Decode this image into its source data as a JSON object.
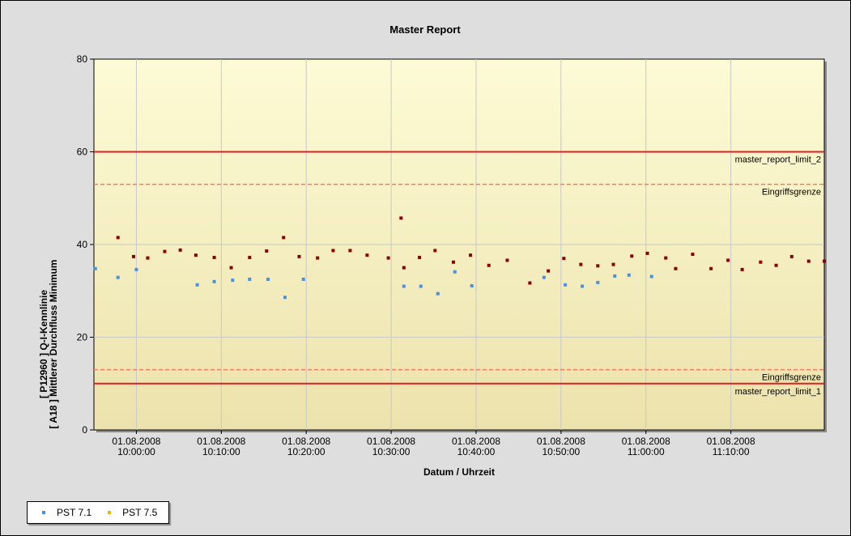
{
  "chart_data": {
    "type": "scatter",
    "title": "Master Report",
    "xlabel": "Datum / Uhrzeit",
    "ylabel": "[ P12960 ]  Q-I-Kennlinie\n[ A18 ]  Mittlerer Durchfluss Minimum",
    "ylim": [
      0,
      80
    ],
    "yticks": [
      0,
      20,
      40,
      60,
      80
    ],
    "xlim": [
      "2008-08-01 09:55:00",
      "2008-08-01 11:21:00"
    ],
    "xticks": [
      {
        "x": "2008-08-01 10:00:00",
        "date": "01.08.2008",
        "time": "10:00:00"
      },
      {
        "x": "2008-08-01 10:10:00",
        "date": "01.08.2008",
        "time": "10:10:00"
      },
      {
        "x": "2008-08-01 10:20:00",
        "date": "01.08.2008",
        "time": "10:20:00"
      },
      {
        "x": "2008-08-01 10:30:00",
        "date": "01.08.2008",
        "time": "10:30:00"
      },
      {
        "x": "2008-08-01 10:40:00",
        "date": "01.08.2008",
        "time": "10:40:00"
      },
      {
        "x": "2008-08-01 10:50:00",
        "date": "01.08.2008",
        "time": "10:50:00"
      },
      {
        "x": "2008-08-01 11:00:00",
        "date": "01.08.2008",
        "time": "11:00:00"
      },
      {
        "x": "2008-08-01 11:10:00",
        "date": "01.08.2008",
        "time": "11:10:00"
      }
    ],
    "grid": true,
    "legend_position": "bottom-left",
    "reference_lines": [
      {
        "label": "master_report_limit_2",
        "y": 60,
        "style": "solid",
        "color": "#e02020"
      },
      {
        "label": "Eingriffsgrenze",
        "y": 53,
        "style": "dashed",
        "color": "#f08060"
      },
      {
        "label": "Eingriffsgrenze",
        "y": 13,
        "style": "dashed",
        "color": "#f08060"
      },
      {
        "label": "master_report_limit_1",
        "y": 10,
        "style": "solid",
        "color": "#e02020"
      }
    ],
    "series": [
      {
        "name": "PST 7.1",
        "color": "#4a90e2",
        "points": [
          {
            "x": "2008-08-01 09:55:10",
            "y": 34.8
          },
          {
            "x": "2008-08-01 09:57:50",
            "y": 32.9
          },
          {
            "x": "2008-08-01 09:60:00",
            "y": 34.6
          },
          {
            "x": "2008-08-01 10:07:10",
            "y": 31.3
          },
          {
            "x": "2008-08-01 10:09:10",
            "y": 32.0
          },
          {
            "x": "2008-08-01 10:11:20",
            "y": 32.3
          },
          {
            "x": "2008-08-01 10:13:20",
            "y": 32.5
          },
          {
            "x": "2008-08-01 10:15:30",
            "y": 32.5
          },
          {
            "x": "2008-08-01 10:17:30",
            "y": 28.6
          },
          {
            "x": "2008-08-01 10:19:40",
            "y": 32.5
          },
          {
            "x": "2008-08-01 10:31:30",
            "y": 31.0
          },
          {
            "x": "2008-08-01 10:33:30",
            "y": 31.0
          },
          {
            "x": "2008-08-01 10:35:30",
            "y": 29.4
          },
          {
            "x": "2008-08-01 10:37:30",
            "y": 34.1
          },
          {
            "x": "2008-08-01 10:39:30",
            "y": 31.1
          },
          {
            "x": "2008-08-01 10:48:00",
            "y": 32.9
          },
          {
            "x": "2008-08-01 10:50:30",
            "y": 31.3
          },
          {
            "x": "2008-08-01 10:52:30",
            "y": 31.0
          },
          {
            "x": "2008-08-01 10:54:20",
            "y": 31.8
          },
          {
            "x": "2008-08-01 10:56:20",
            "y": 33.2
          },
          {
            "x": "2008-08-01 10:58:00",
            "y": 33.4
          },
          {
            "x": "2008-08-01 11:00:40",
            "y": 33.1
          }
        ]
      },
      {
        "name": "PST 7.5",
        "color": "#e8b800",
        "points": []
      },
      {
        "name": "",
        "color": "#8b0000",
        "points": [
          {
            "x": "2008-08-01 09:57:50",
            "y": 41.5
          },
          {
            "x": "2008-08-01 09:59:40",
            "y": 37.4
          },
          {
            "x": "2008-08-01 10:01:20",
            "y": 37.1
          },
          {
            "x": "2008-08-01 10:03:20",
            "y": 38.5
          },
          {
            "x": "2008-08-01 10:05:10",
            "y": 38.8
          },
          {
            "x": "2008-08-01 10:07:00",
            "y": 37.7
          },
          {
            "x": "2008-08-01 10:09:10",
            "y": 37.2
          },
          {
            "x": "2008-08-01 10:11:10",
            "y": 35.0
          },
          {
            "x": "2008-08-01 10:13:20",
            "y": 37.2
          },
          {
            "x": "2008-08-01 10:15:20",
            "y": 38.6
          },
          {
            "x": "2008-08-01 10:17:20",
            "y": 41.5
          },
          {
            "x": "2008-08-01 10:19:10",
            "y": 37.4
          },
          {
            "x": "2008-08-01 10:21:20",
            "y": 37.1
          },
          {
            "x": "2008-08-01 10:23:10",
            "y": 38.7
          },
          {
            "x": "2008-08-01 10:25:10",
            "y": 38.7
          },
          {
            "x": "2008-08-01 10:27:10",
            "y": 37.7
          },
          {
            "x": "2008-08-01 10:29:40",
            "y": 37.1
          },
          {
            "x": "2008-08-01 10:31:10",
            "y": 45.7
          },
          {
            "x": "2008-08-01 10:31:30",
            "y": 35.0
          },
          {
            "x": "2008-08-01 10:33:20",
            "y": 37.2
          },
          {
            "x": "2008-08-01 10:35:10",
            "y": 38.7
          },
          {
            "x": "2008-08-01 10:37:20",
            "y": 36.2
          },
          {
            "x": "2008-08-01 10:39:20",
            "y": 37.7
          },
          {
            "x": "2008-08-01 10:41:30",
            "y": 35.5
          },
          {
            "x": "2008-08-01 10:43:40",
            "y": 36.6
          },
          {
            "x": "2008-08-01 10:46:20",
            "y": 31.7
          },
          {
            "x": "2008-08-01 10:48:30",
            "y": 34.3
          },
          {
            "x": "2008-08-01 10:50:20",
            "y": 37.0
          },
          {
            "x": "2008-08-01 10:52:20",
            "y": 35.7
          },
          {
            "x": "2008-08-01 10:54:20",
            "y": 35.4
          },
          {
            "x": "2008-08-01 10:56:10",
            "y": 35.7
          },
          {
            "x": "2008-08-01 10:58:20",
            "y": 37.5
          },
          {
            "x": "2008-08-01 11:00:10",
            "y": 38.1
          },
          {
            "x": "2008-08-01 11:02:20",
            "y": 37.1
          },
          {
            "x": "2008-08-01 11:03:30",
            "y": 34.8
          },
          {
            "x": "2008-08-01 11:05:30",
            "y": 37.9
          },
          {
            "x": "2008-08-01 11:07:40",
            "y": 34.8
          },
          {
            "x": "2008-08-01 11:09:40",
            "y": 36.6
          },
          {
            "x": "2008-08-01 11:11:20",
            "y": 34.6
          },
          {
            "x": "2008-08-01 11:13:30",
            "y": 36.2
          },
          {
            "x": "2008-08-01 11:15:20",
            "y": 35.5
          },
          {
            "x": "2008-08-01 11:17:10",
            "y": 37.4
          },
          {
            "x": "2008-08-01 11:19:10",
            "y": 36.4
          },
          {
            "x": "2008-08-01 11:21:00",
            "y": 36.4
          }
        ]
      }
    ]
  }
}
